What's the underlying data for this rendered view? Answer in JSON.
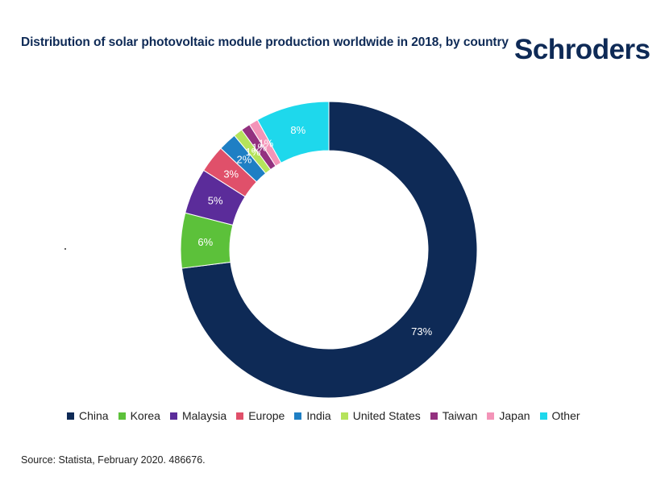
{
  "header": {
    "title": "Distribution of solar photovoltaic module production worldwide in 2018, by country",
    "logo_text": "Schroders"
  },
  "footer": {
    "source": "Source: Statista, February 2020. 486676."
  },
  "chart_data": {
    "type": "pie",
    "subtype": "donut",
    "title": "Distribution of solar photovoltaic module production worldwide in 2018, by country",
    "categories": [
      "China",
      "Korea",
      "Malaysia",
      "Europe",
      "India",
      "United States",
      "Taiwan",
      "Japan",
      "Other"
    ],
    "values": [
      73,
      6,
      5,
      3,
      2,
      1,
      1,
      1,
      8
    ],
    "labels": [
      "73%",
      "6%",
      "5%",
      "3%",
      "2%",
      "1%",
      "1%",
      "1%",
      "8%"
    ],
    "colors": [
      "#0e2a56",
      "#5cc13a",
      "#5b2c9a",
      "#e0506a",
      "#1f7fc4",
      "#b5e35b",
      "#93317f",
      "#f394b8",
      "#1ed8ec"
    ],
    "legend_position": "bottom"
  }
}
